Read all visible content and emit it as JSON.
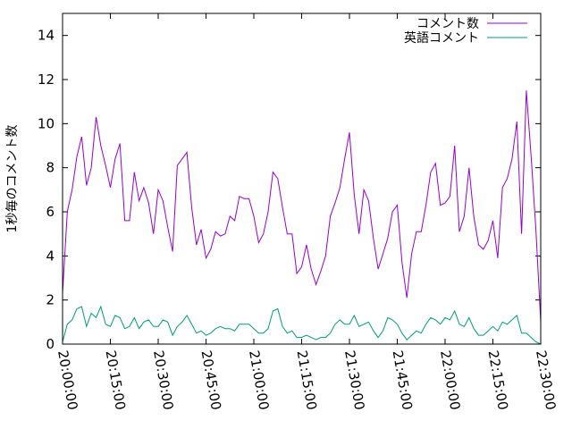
{
  "chart_data": {
    "type": "line",
    "title": "",
    "xlabel": "",
    "ylabel": "1秒毎のコメント数",
    "x_tick_labels": [
      "20:00:00",
      "20:15:00",
      "20:30:00",
      "20:45:00",
      "21:00:00",
      "21:15:00",
      "21:30:00",
      "21:45:00",
      "22:00:00",
      "22:15:00",
      "22:30:00"
    ],
    "x_unit": "minutes since 20:00:00",
    "xlim": [
      0,
      150
    ],
    "ylim": [
      0,
      15
    ],
    "y_ticks": [
      0,
      2,
      4,
      6,
      8,
      10,
      12,
      14
    ],
    "grid": false,
    "legend_position": "top-right",
    "series": [
      {
        "name": "コメント数",
        "color": "#9400d3",
        "x": [
          0,
          1.5,
          3,
          4.5,
          6,
          7.5,
          9,
          10.5,
          12,
          13.5,
          15,
          16.5,
          18,
          19.5,
          21,
          22.5,
          24,
          25.5,
          27,
          28.5,
          30,
          31.5,
          33,
          34.5,
          36,
          37.5,
          39,
          40.5,
          42,
          43.5,
          45,
          46.5,
          48,
          49.5,
          51,
          52.5,
          54,
          55.5,
          57,
          58.5,
          60,
          61.5,
          63,
          64.5,
          66,
          67.5,
          69,
          70.5,
          72,
          73.5,
          75,
          76.5,
          78,
          79.5,
          81,
          82.5,
          84,
          85.5,
          87,
          88.5,
          90,
          91.5,
          93,
          94.5,
          96,
          97.5,
          99,
          100.5,
          102,
          103.5,
          105,
          106.5,
          108,
          109.5,
          111,
          112.5,
          114,
          115.5,
          117,
          118.5,
          120,
          121.5,
          123,
          124.5,
          126,
          127.5,
          129,
          130.5,
          132,
          133.5,
          135,
          136.5,
          138,
          139.5,
          141,
          142.5,
          144,
          145.5,
          147,
          148.5,
          150
        ],
        "values": [
          2.3,
          6.0,
          7.0,
          8.5,
          9.4,
          7.2,
          8.0,
          10.3,
          9.0,
          8.1,
          7.1,
          8.4,
          9.1,
          5.6,
          5.6,
          7.8,
          6.5,
          7.1,
          6.4,
          5.0,
          7.0,
          6.5,
          5.3,
          4.2,
          8.1,
          8.4,
          8.7,
          6.2,
          4.5,
          5.2,
          3.9,
          4.3,
          5.1,
          4.9,
          5.0,
          5.8,
          5.6,
          6.7,
          6.6,
          6.6,
          5.8,
          4.6,
          5.0,
          6.0,
          7.8,
          7.5,
          6.2,
          5.0,
          5.0,
          3.2,
          3.5,
          4.5,
          3.4,
          2.7,
          3.3,
          4.0,
          5.8,
          6.4,
          7.1,
          8.4,
          9.6,
          6.8,
          5.0,
          7.0,
          6.5,
          4.8,
          3.4,
          4.1,
          4.8,
          6.0,
          6.3,
          3.7,
          2.1,
          4.1,
          5.1,
          5.1,
          6.3,
          7.8,
          8.2,
          6.3,
          6.4,
          6.7,
          9.0,
          5.1,
          5.8,
          8.0,
          5.8,
          4.5,
          4.3,
          4.7,
          5.6,
          3.9,
          7.1,
          7.5,
          8.4,
          10.1,
          5.0,
          11.5,
          8.5,
          5.2,
          1.0
        ]
      },
      {
        "name": "英語コメント",
        "color": "#009e73",
        "x": [
          0,
          1.5,
          3,
          4.5,
          6,
          7.5,
          9,
          10.5,
          12,
          13.5,
          15,
          16.5,
          18,
          19.5,
          21,
          22.5,
          24,
          25.5,
          27,
          28.5,
          30,
          31.5,
          33,
          34.5,
          36,
          37.5,
          39,
          40.5,
          42,
          43.5,
          45,
          46.5,
          48,
          49.5,
          51,
          52.5,
          54,
          55.5,
          57,
          58.5,
          60,
          61.5,
          63,
          64.5,
          66,
          67.5,
          69,
          70.5,
          72,
          73.5,
          75,
          76.5,
          78,
          79.5,
          81,
          82.5,
          84,
          85.5,
          87,
          88.5,
          90,
          91.5,
          93,
          94.5,
          96,
          97.5,
          99,
          100.5,
          102,
          103.5,
          105,
          106.5,
          108,
          109.5,
          111,
          112.5,
          114,
          115.5,
          117,
          118.5,
          120,
          121.5,
          123,
          124.5,
          126,
          127.5,
          129,
          130.5,
          132,
          133.5,
          135,
          136.5,
          138,
          139.5,
          141,
          142.5,
          144,
          145.5,
          147,
          148.5,
          150
        ],
        "values": [
          0.1,
          0.9,
          1.1,
          1.6,
          1.7,
          0.8,
          1.4,
          1.2,
          1.7,
          0.9,
          0.8,
          1.3,
          1.2,
          0.7,
          0.8,
          1.2,
          0.7,
          1.0,
          1.1,
          0.8,
          0.8,
          1.1,
          1.0,
          0.4,
          0.8,
          1.0,
          1.3,
          0.9,
          0.5,
          0.6,
          0.4,
          0.5,
          0.7,
          0.8,
          0.7,
          0.7,
          0.6,
          0.9,
          0.9,
          0.9,
          0.7,
          0.5,
          0.5,
          0.7,
          1.5,
          1.6,
          0.8,
          0.5,
          0.6,
          0.3,
          0.3,
          0.4,
          0.3,
          0.2,
          0.3,
          0.3,
          0.5,
          0.9,
          1.1,
          0.9,
          0.9,
          1.3,
          0.8,
          0.9,
          1.0,
          0.6,
          0.3,
          0.6,
          1.2,
          1.1,
          0.9,
          0.5,
          0.2,
          0.4,
          0.6,
          0.5,
          0.9,
          1.2,
          1.1,
          0.9,
          1.2,
          1.1,
          1.5,
          0.9,
          0.8,
          1.2,
          0.7,
          0.4,
          0.4,
          0.6,
          0.8,
          0.6,
          1.0,
          0.9,
          1.1,
          1.3,
          0.5,
          0.5,
          0.3,
          0.1,
          0.0
        ]
      }
    ]
  }
}
